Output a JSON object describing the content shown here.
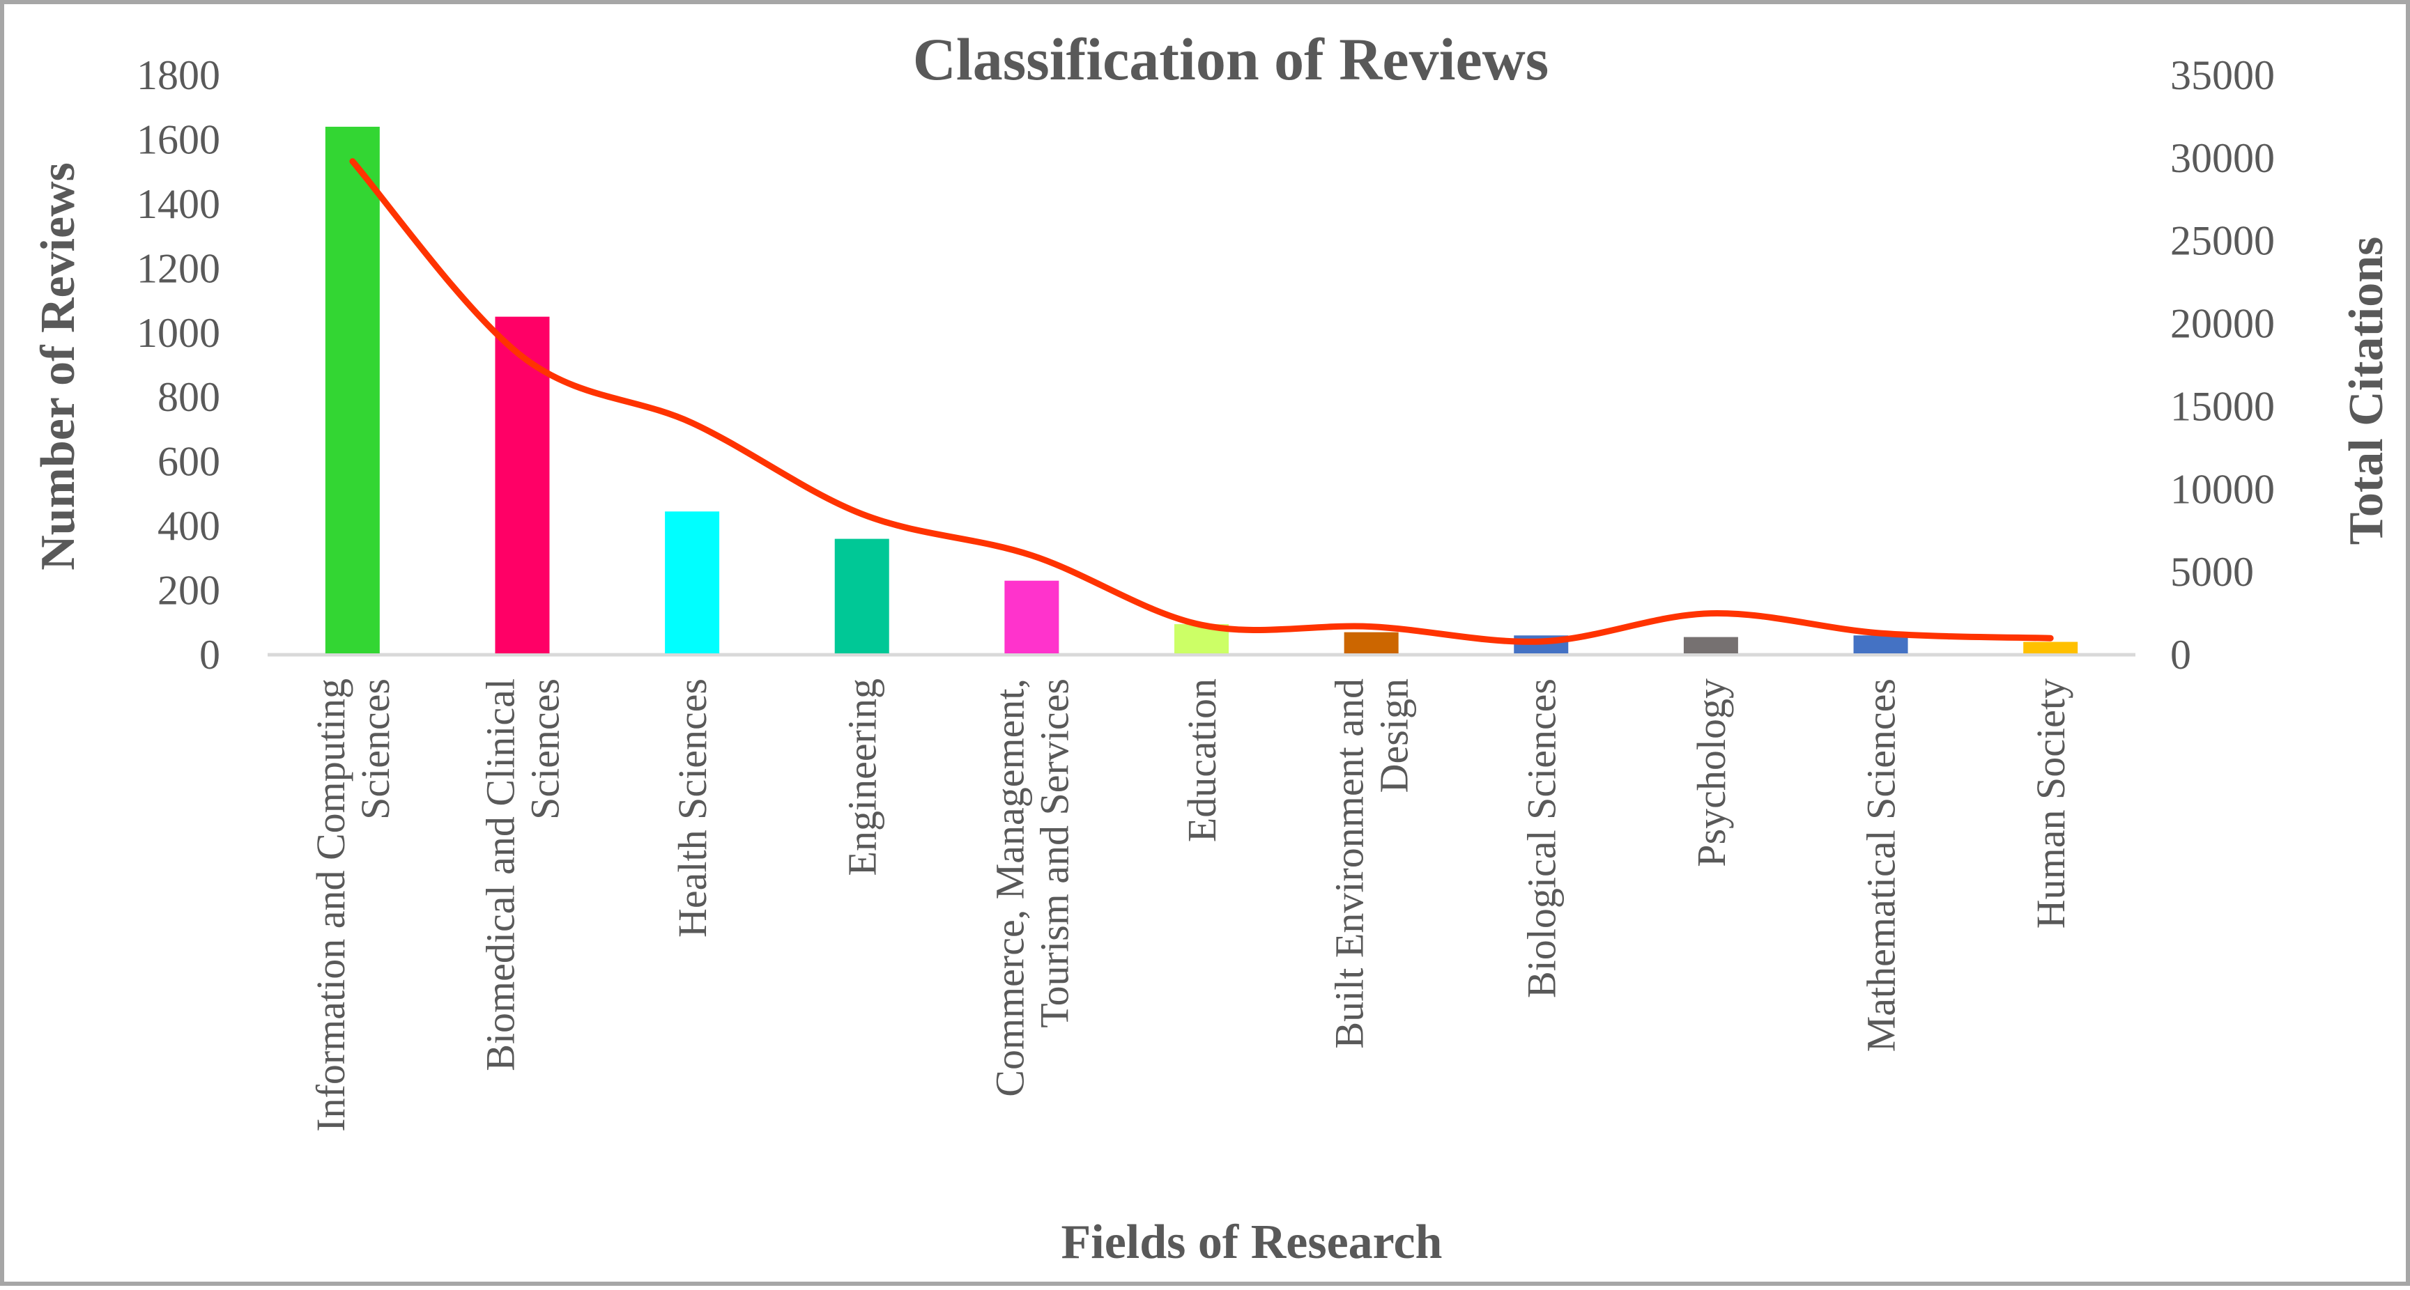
{
  "chart_data": {
    "type": "bar",
    "title": "Classification of Reviews",
    "xlabel": "Fields of Research",
    "ylabel": "Number of Reviews",
    "y2label": "Total Citations",
    "ylim": [
      0,
      1800
    ],
    "y2lim": [
      0,
      35000
    ],
    "yticks": [
      "0",
      "200",
      "400",
      "600",
      "800",
      "1000",
      "1200",
      "1400",
      "1600",
      "1800"
    ],
    "y2ticks": [
      "0",
      "5000",
      "10000",
      "15000",
      "20000",
      "25000",
      "30000",
      "35000"
    ],
    "grid": false,
    "legend": "none",
    "categories": [
      [
        "Information and Computing",
        "Sciences"
      ],
      [
        "Biomedical and Clinical",
        "Sciences"
      ],
      [
        "Health Sciences"
      ],
      [
        "Engineering"
      ],
      [
        "Commerce, Management,",
        "Tourism and Services"
      ],
      [
        "Education"
      ],
      [
        "Built Environment and",
        "Design"
      ],
      [
        "Biological Sciences"
      ],
      [
        "Psychology"
      ],
      [
        "Mathematical Sciences"
      ],
      [
        "Human Society"
      ]
    ],
    "series": [
      {
        "type": "bar",
        "axis": "left",
        "values": [
          1640,
          1050,
          445,
          360,
          230,
          95,
          70,
          60,
          55,
          60,
          40
        ],
        "colors": [
          "#33d633",
          "#ff0066",
          "#00ffff",
          "#00c896",
          "#ff33cc",
          "#ccff66",
          "#cc6600",
          "#4472c4",
          "#767171",
          "#4472c4",
          "#ffc000"
        ]
      },
      {
        "type": "line",
        "axis": "right",
        "smooth": true,
        "color": "#ff3300",
        "values": [
          29800,
          18000,
          14000,
          8500,
          6000,
          1800,
          1700,
          800,
          2500,
          1300,
          1000
        ]
      }
    ]
  }
}
